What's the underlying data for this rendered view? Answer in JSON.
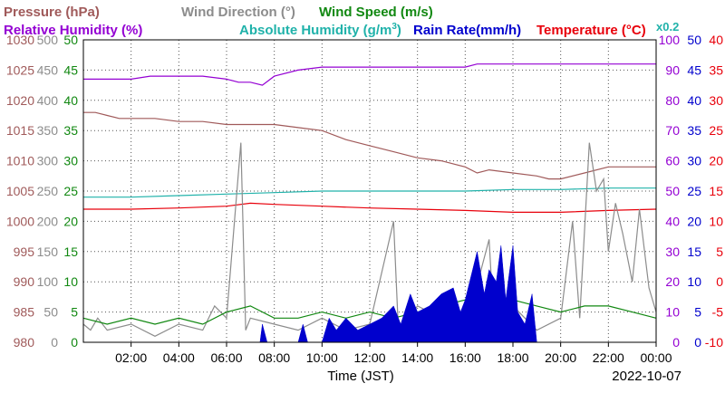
{
  "chart_data": {
    "type": "line",
    "xlabel": "Time (JST)",
    "date": "2022-10-07",
    "x_ticks": [
      "02:00",
      "04:00",
      "06:00",
      "08:00",
      "10:00",
      "12:00",
      "14:00",
      "16:00",
      "18:00",
      "20:00",
      "22:00",
      "00:00"
    ],
    "x_range_hours": [
      0,
      24
    ],
    "grid": true,
    "legend": [
      {
        "text": "Pressure (hPa)",
        "color": "#a05a5a"
      },
      {
        "text": "Wind Direction (°)",
        "color": "#8c8c8c"
      },
      {
        "text": "Wind Speed (m/s)",
        "color": "#118811"
      },
      {
        "text": "Relative Humidity (%)",
        "color": "#9400d3"
      },
      {
        "text": "Absolute Humidity (g/m",
        "sup": "3",
        "close": ")",
        "color": "#20b2aa"
      },
      {
        "text": "Rain Rate(mm/h)",
        "color": "#0000cd"
      },
      {
        "text": "Temperature (°C)",
        "color": "#e8000b"
      }
    ],
    "scale_note": "x0.2",
    "axes": {
      "pressure": {
        "color": "#a05a5a",
        "range": [
          980,
          1030
        ],
        "ticks": [
          "1030",
          "1025",
          "1020",
          "1015",
          "1010",
          "1005",
          "1000",
          "995",
          "990",
          "985",
          "980"
        ]
      },
      "wind_direction": {
        "color": "#8c8c8c",
        "range": [
          0,
          500
        ],
        "ticks": [
          "500",
          "450",
          "400",
          "350",
          "300",
          "250",
          "200",
          "150",
          "100",
          "50",
          "0"
        ]
      },
      "wind_speed": {
        "color": "#118811",
        "range": [
          0,
          50
        ],
        "ticks": [
          "50",
          "45",
          "40",
          "35",
          "30",
          "25",
          "20",
          "15",
          "10",
          "5",
          "0"
        ]
      },
      "humidity": {
        "color": "#9400d3",
        "range": [
          0,
          100
        ],
        "ticks": [
          "100",
          "90",
          "80",
          "70",
          "60",
          "50",
          "40",
          "30",
          "20",
          "10",
          "0"
        ]
      },
      "rain_rate": {
        "color": "#0000cd",
        "range": [
          0,
          50
        ],
        "ticks": [
          "50",
          "45",
          "40",
          "35",
          "30",
          "25",
          "20",
          "15",
          "10",
          "5",
          "0"
        ]
      },
      "temperature": {
        "color": "#e8000b",
        "range": [
          -10,
          40
        ],
        "ticks": [
          "40",
          "35",
          "30",
          "25",
          "20",
          "15",
          "10",
          "5",
          "0",
          "-5",
          "-10"
        ]
      }
    },
    "series": [
      {
        "key": "pressure",
        "axis": "pressure",
        "color": "#a05a5a",
        "points": [
          [
            0,
            1018
          ],
          [
            0.5,
            1018
          ],
          [
            1,
            1017.5
          ],
          [
            1.5,
            1017
          ],
          [
            2,
            1017
          ],
          [
            3,
            1017
          ],
          [
            4,
            1016.5
          ],
          [
            5,
            1016.5
          ],
          [
            6,
            1016
          ],
          [
            7,
            1016
          ],
          [
            8,
            1016
          ],
          [
            9,
            1015.5
          ],
          [
            10,
            1015
          ],
          [
            11,
            1013.5
          ],
          [
            12,
            1012.5
          ],
          [
            13,
            1011.5
          ],
          [
            14,
            1010.5
          ],
          [
            15,
            1010
          ],
          [
            16,
            1009
          ],
          [
            16.5,
            1008
          ],
          [
            17,
            1008.5
          ],
          [
            18,
            1008
          ],
          [
            19,
            1007.5
          ],
          [
            19.5,
            1007
          ],
          [
            20,
            1007
          ],
          [
            21,
            1008
          ],
          [
            22,
            1009
          ],
          [
            23,
            1009
          ],
          [
            24,
            1009
          ]
        ]
      },
      {
        "key": "rel_humidity",
        "axis": "humidity",
        "color": "#9400d3",
        "points": [
          [
            0,
            87
          ],
          [
            1,
            87
          ],
          [
            2,
            87
          ],
          [
            2.8,
            88
          ],
          [
            5,
            88
          ],
          [
            6,
            87
          ],
          [
            6.5,
            86
          ],
          [
            7,
            86
          ],
          [
            7.5,
            85
          ],
          [
            8,
            88
          ],
          [
            9,
            90
          ],
          [
            10,
            91
          ],
          [
            11,
            91
          ],
          [
            12,
            91
          ],
          [
            13,
            91
          ],
          [
            14,
            91
          ],
          [
            15,
            91
          ],
          [
            16,
            91
          ],
          [
            16.5,
            92
          ],
          [
            17,
            92
          ],
          [
            18,
            92
          ],
          [
            20,
            92
          ],
          [
            21,
            92
          ],
          [
            22,
            92
          ],
          [
            23,
            92
          ],
          [
            24,
            92
          ]
        ]
      },
      {
        "key": "abs_humidity",
        "axis": "humidity",
        "color": "#20b2aa",
        "points": [
          [
            0,
            48
          ],
          [
            2,
            48
          ],
          [
            4,
            48.5
          ],
          [
            6,
            49
          ],
          [
            8,
            49.5
          ],
          [
            10,
            50
          ],
          [
            12,
            50
          ],
          [
            14,
            50
          ],
          [
            16,
            50
          ],
          [
            18,
            50.5
          ],
          [
            20,
            50.5
          ],
          [
            22,
            51
          ],
          [
            24,
            51
          ]
        ]
      },
      {
        "key": "temperature",
        "axis": "temperature",
        "color": "#e8000b",
        "points": [
          [
            0,
            12
          ],
          [
            2,
            12
          ],
          [
            4,
            12.2
          ],
          [
            6,
            12.5
          ],
          [
            7,
            13
          ],
          [
            8,
            12.8
          ],
          [
            10,
            12.5
          ],
          [
            12,
            12.2
          ],
          [
            14,
            12
          ],
          [
            16,
            11.8
          ],
          [
            18,
            11.5
          ],
          [
            20,
            11.5
          ],
          [
            22,
            11.8
          ],
          [
            24,
            12
          ]
        ]
      },
      {
        "key": "wind_direction",
        "axis": "wind_direction",
        "color": "#8c8c8c",
        "points": [
          [
            0,
            30
          ],
          [
            0.3,
            20
          ],
          [
            0.6,
            40
          ],
          [
            1,
            20
          ],
          [
            2,
            30
          ],
          [
            3,
            10
          ],
          [
            4,
            30
          ],
          [
            5,
            20
          ],
          [
            5.5,
            60
          ],
          [
            6,
            40
          ],
          [
            6.6,
            330
          ],
          [
            6.8,
            20
          ],
          [
            7,
            40
          ],
          [
            8,
            30
          ],
          [
            9,
            20
          ],
          [
            10,
            40
          ],
          [
            11,
            20
          ],
          [
            12,
            30
          ],
          [
            13,
            200
          ],
          [
            13.2,
            20
          ],
          [
            14,
            60
          ],
          [
            15,
            40
          ],
          [
            16,
            20
          ],
          [
            17,
            170
          ],
          [
            17.2,
            30
          ],
          [
            18,
            60
          ],
          [
            19,
            20
          ],
          [
            20,
            40
          ],
          [
            20.5,
            200
          ],
          [
            20.8,
            40
          ],
          [
            21.2,
            330
          ],
          [
            21.5,
            250
          ],
          [
            21.8,
            270
          ],
          [
            22,
            150
          ],
          [
            22.3,
            230
          ],
          [
            22.6,
            180
          ],
          [
            23,
            100
          ],
          [
            23.3,
            220
          ],
          [
            23.7,
            90
          ],
          [
            24,
            50
          ]
        ]
      },
      {
        "key": "wind_speed",
        "axis": "wind_speed",
        "color": "#118811",
        "points": [
          [
            0,
            4
          ],
          [
            1,
            3
          ],
          [
            2,
            4
          ],
          [
            3,
            3
          ],
          [
            4,
            4
          ],
          [
            5,
            3
          ],
          [
            6,
            5
          ],
          [
            7,
            6
          ],
          [
            8,
            4
          ],
          [
            9,
            4
          ],
          [
            10,
            5
          ],
          [
            11,
            4
          ],
          [
            12,
            5
          ],
          [
            13,
            4
          ],
          [
            14,
            5
          ],
          [
            15,
            6
          ],
          [
            16,
            7
          ],
          [
            17,
            8
          ],
          [
            18,
            7
          ],
          [
            19,
            6
          ],
          [
            20,
            5
          ],
          [
            21,
            6
          ],
          [
            22,
            6
          ],
          [
            23,
            5
          ],
          [
            24,
            4
          ]
        ]
      },
      {
        "key": "rain_rate",
        "axis": "rain_rate",
        "color": "#0000cd",
        "fill": true,
        "points": [
          [
            7.4,
            0
          ],
          [
            7.5,
            3
          ],
          [
            7.7,
            0
          ],
          [
            9,
            0
          ],
          [
            9.2,
            3
          ],
          [
            9.4,
            0
          ],
          [
            10,
            0
          ],
          [
            10.3,
            4
          ],
          [
            10.6,
            2
          ],
          [
            11,
            4
          ],
          [
            11.5,
            2
          ],
          [
            12,
            3
          ],
          [
            12.5,
            4
          ],
          [
            13,
            6
          ],
          [
            13.3,
            3
          ],
          [
            13.7,
            8
          ],
          [
            14,
            5
          ],
          [
            14.5,
            6
          ],
          [
            15,
            8
          ],
          [
            15.5,
            9
          ],
          [
            15.8,
            5
          ],
          [
            16,
            7
          ],
          [
            16.5,
            15
          ],
          [
            16.8,
            8
          ],
          [
            17,
            12
          ],
          [
            17.3,
            10
          ],
          [
            17.5,
            16
          ],
          [
            17.7,
            7
          ],
          [
            18,
            16
          ],
          [
            18.2,
            5
          ],
          [
            18.5,
            3
          ],
          [
            18.8,
            8
          ],
          [
            19,
            0
          ],
          [
            24,
            0
          ]
        ]
      }
    ]
  }
}
